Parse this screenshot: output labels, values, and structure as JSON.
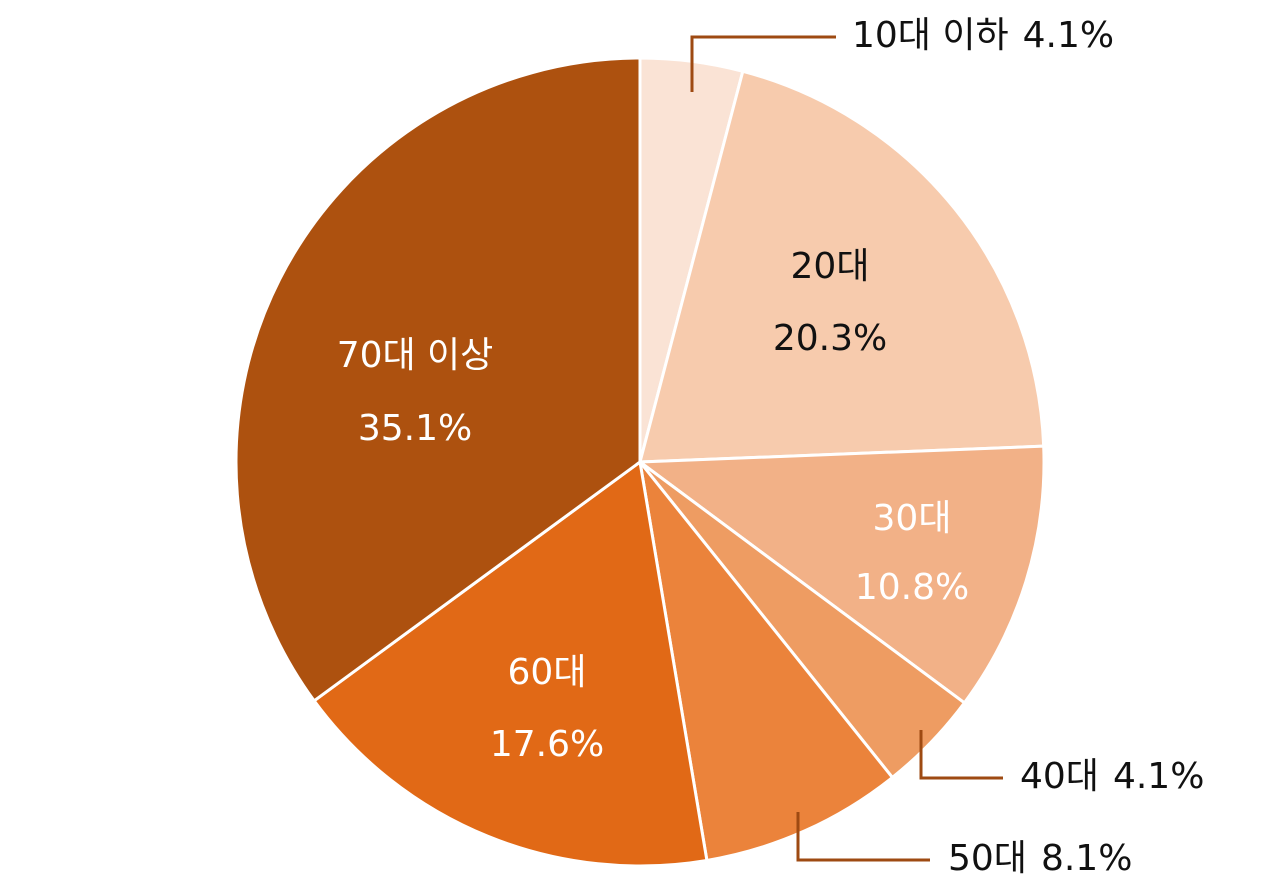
{
  "chart_data": {
    "type": "pie",
    "title": "",
    "slices": [
      {
        "name": "10대 이하",
        "value": 4.1,
        "value_label": "4.1%",
        "color": "#FAE3D5",
        "label_style": "callout",
        "text_color": "#111111"
      },
      {
        "name": "20대",
        "value": 20.3,
        "value_label": "20.3%",
        "color": "#F7CBAD",
        "label_style": "inside",
        "text_color": "#111111"
      },
      {
        "name": "30대",
        "value": 10.8,
        "value_label": "10.8%",
        "color": "#F2B187",
        "label_style": "inside",
        "text_color": "#ffffff"
      },
      {
        "name": "40대",
        "value": 4.1,
        "value_label": "4.1%",
        "color": "#EE9C62",
        "label_style": "callout",
        "text_color": "#111111"
      },
      {
        "name": "50대",
        "value": 8.1,
        "value_label": "8.1%",
        "color": "#EB833B",
        "label_style": "callout",
        "text_color": "#111111"
      },
      {
        "name": "60대",
        "value": 17.6,
        "value_label": "17.6%",
        "color": "#E16916",
        "label_style": "inside",
        "text_color": "#ffffff"
      },
      {
        "name": "70대 이상",
        "value": 35.1,
        "value_label": "35.1%",
        "color": "#AD510F",
        "label_style": "inside",
        "text_color": "#ffffff"
      }
    ],
    "start": "12 o'clock",
    "direction": "clockwise",
    "slice_border_color": "#ffffff",
    "leader_line_color": "#9E4A12",
    "legend": "none"
  }
}
